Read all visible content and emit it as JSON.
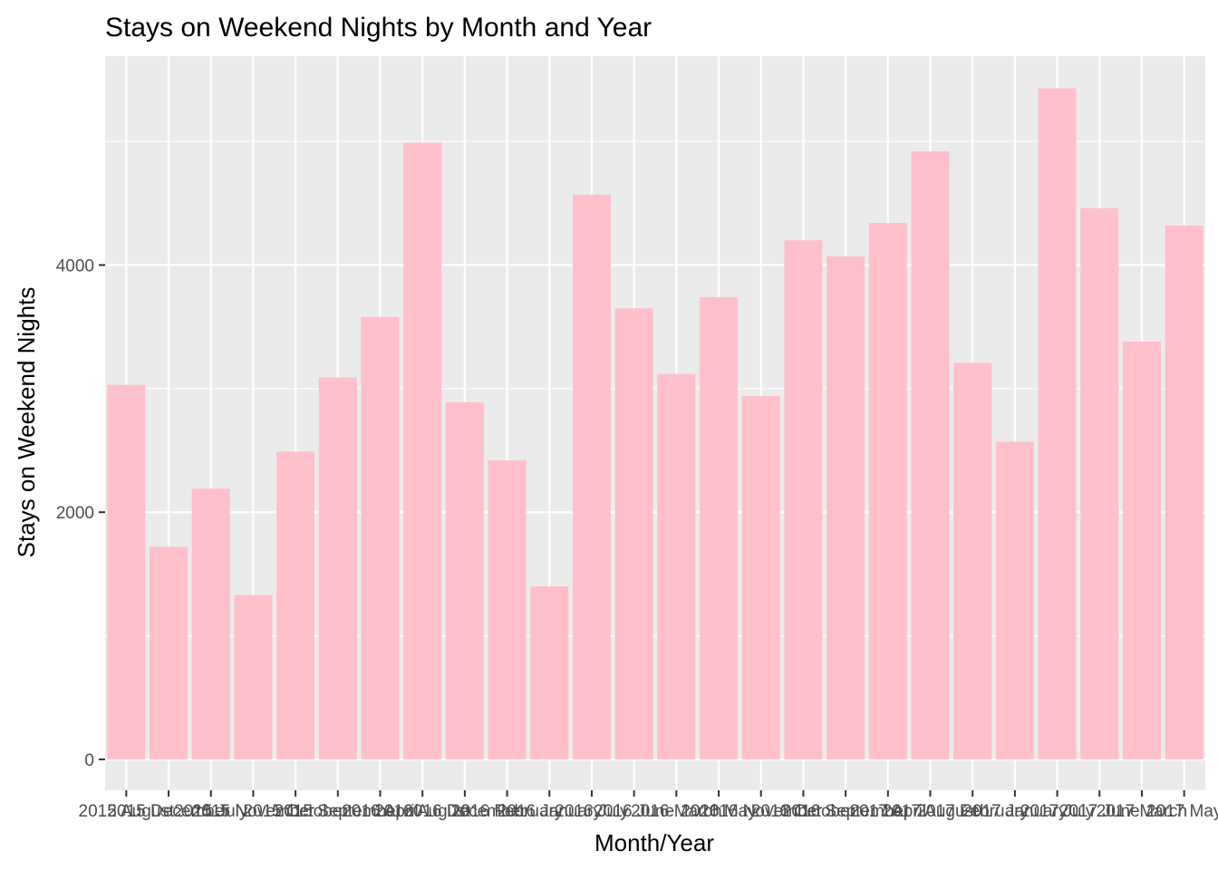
{
  "chart_data": {
    "type": "bar",
    "title": "Stays on Weekend Nights by Month and Year",
    "xlabel": "Month/Year",
    "ylabel": "Stays on Weekend Nights",
    "categories": [
      "2015 August",
      "2015 December",
      "2015 July",
      "2015 November",
      "2015 October",
      "2015 September",
      "2016 April",
      "2016 August",
      "2016 December",
      "2016 February",
      "2016 January",
      "2016 July",
      "2016 June",
      "2016 March",
      "2016 May",
      "2016 November",
      "2016 October",
      "2016 September",
      "2017 April",
      "2017 August",
      "2017 February",
      "2017 January",
      "2017 July",
      "2017 June",
      "2017 March",
      "2017 May"
    ],
    "values": [
      3030,
      1720,
      2190,
      1330,
      2490,
      3090,
      3580,
      4990,
      2890,
      2420,
      1400,
      4570,
      3650,
      3120,
      3740,
      2940,
      4200,
      4070,
      4340,
      4920,
      3210,
      2570,
      5430,
      4460,
      3380,
      4320
    ],
    "yticks": [
      0,
      2000,
      4000
    ],
    "ylim": [
      -250,
      5690
    ],
    "grid": true,
    "bar_color": "#ffc0cb",
    "panel_color": "#ebebeb",
    "grid_color": "#ffffff"
  }
}
